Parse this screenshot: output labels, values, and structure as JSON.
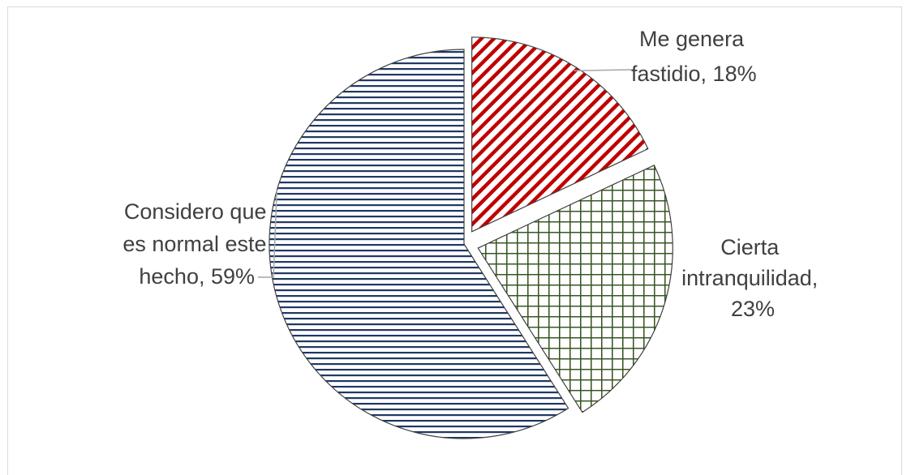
{
  "chart_data": {
    "type": "pie",
    "title": "",
    "slices": [
      {
        "name": "Me genera fastidio",
        "value": 18,
        "label_lines": [
          "Me genera",
          "fastidio, 18%"
        ],
        "color": "#c00000",
        "pattern": "diagonal-stripes",
        "exploded": true
      },
      {
        "name": "Cierta intranquilidad",
        "value": 23,
        "label_lines": [
          "Cierta",
          "intranquilidad,",
          "23%"
        ],
        "color": "#385723",
        "pattern": "grid",
        "exploded": true
      },
      {
        "name": "Considero que es normal este hecho",
        "value": 59,
        "label_lines": [
          "Considero que",
          "es normal este",
          "hecho, 59%"
        ],
        "color": "#1f3864",
        "pattern": "horizontal-lines",
        "exploded": false
      }
    ],
    "legend": "none",
    "data_labels": "outside with leader lines"
  }
}
